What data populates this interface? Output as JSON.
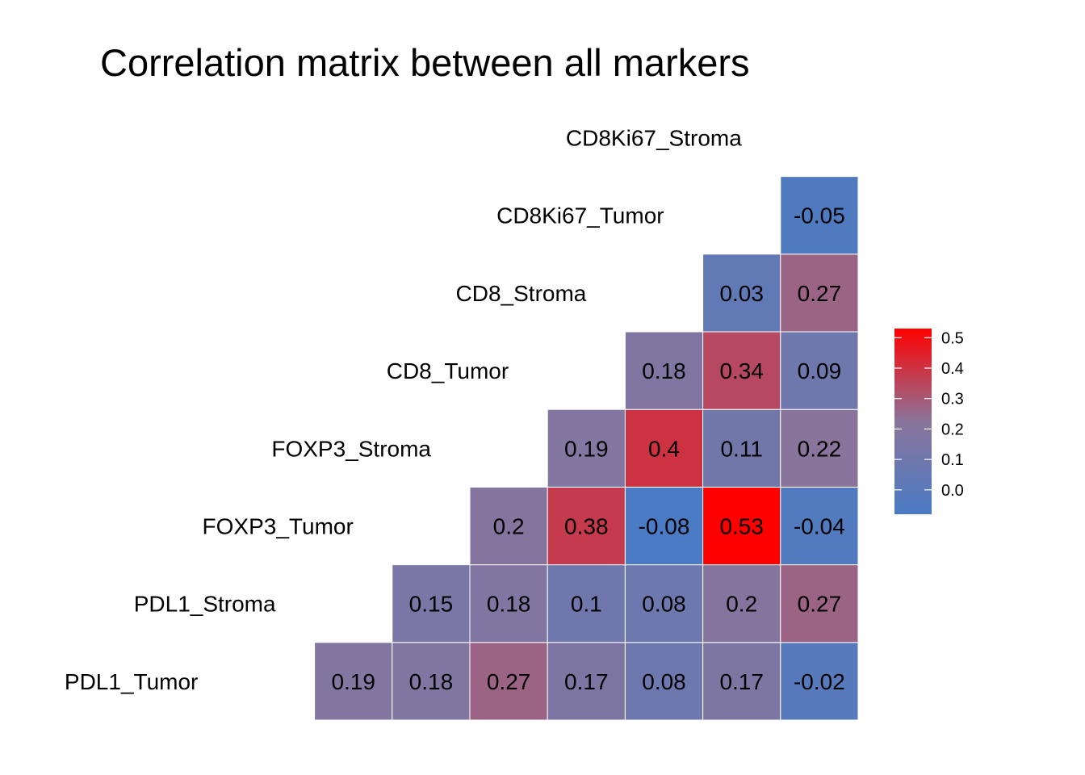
{
  "chart_data": {
    "type": "heatmap",
    "title": "Correlation matrix between all markers",
    "variables": [
      "PDL1_Tumor",
      "PDL1_Stroma",
      "FOXP3_Tumor",
      "FOXP3_Stroma",
      "CD8_Tumor",
      "CD8_Stroma",
      "CD8Ki67_Tumor",
      "CD8Ki67_Stroma"
    ],
    "triangle": "lower",
    "matrix": [
      [
        null,
        null,
        null,
        null,
        null,
        null,
        null,
        null
      ],
      [
        0.19,
        null,
        null,
        null,
        null,
        null,
        null,
        null
      ],
      [
        0.18,
        0.15,
        null,
        null,
        null,
        null,
        null,
        null
      ],
      [
        0.27,
        0.18,
        0.2,
        null,
        null,
        null,
        null,
        null
      ],
      [
        0.17,
        0.1,
        0.38,
        0.19,
        null,
        null,
        null,
        null
      ],
      [
        0.08,
        0.08,
        -0.08,
        0.4,
        0.18,
        null,
        null,
        null
      ],
      [
        0.17,
        0.2,
        0.53,
        0.11,
        0.34,
        0.03,
        null,
        null
      ],
      [
        -0.02,
        0.27,
        -0.04,
        0.22,
        0.09,
        0.27,
        -0.05,
        null
      ]
    ],
    "color_scale": {
      "low": "#4a7bc4",
      "mid": "#8a759b",
      "high": "#ff0000",
      "domain": [
        -0.08,
        0.53
      ]
    },
    "legend": {
      "position": "right",
      "ticks": [
        "0.0",
        "0.1",
        "0.2",
        "0.3",
        "0.4",
        "0.5"
      ]
    },
    "cell_border": "#ffffff"
  }
}
